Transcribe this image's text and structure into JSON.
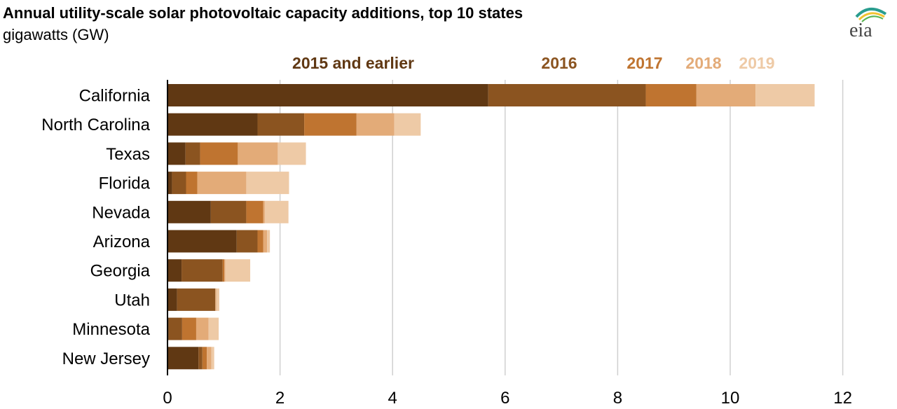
{
  "title": "Annual utility-scale solar photovoltaic capacity additions, top 10 states",
  "subtitle": "gigawatts (GW)",
  "logo_text": "eia",
  "chart_data": {
    "type": "bar",
    "orientation": "horizontal",
    "stacked": true,
    "categories": [
      "California",
      "North Carolina",
      "Texas",
      "Florida",
      "Nevada",
      "Arizona",
      "Georgia",
      "Utah",
      "Minnesota",
      "New Jersey"
    ],
    "series": [
      {
        "name": "2015 and earlier",
        "color": "#603813",
        "values": [
          5.7,
          1.6,
          0.32,
          0.08,
          0.77,
          1.23,
          0.25,
          0.17,
          0.02,
          0.55
        ]
      },
      {
        "name": "2016",
        "color": "#8b5420",
        "values": [
          2.8,
          0.83,
          0.26,
          0.25,
          0.63,
          0.37,
          0.73,
          0.68,
          0.24,
          0.07
        ]
      },
      {
        "name": "2017",
        "color": "#bf7430",
        "values": [
          0.9,
          0.93,
          0.67,
          0.2,
          0.3,
          0.1,
          0.03,
          0.0,
          0.25,
          0.08
        ]
      },
      {
        "name": "2018",
        "color": "#e3ab78",
        "values": [
          1.05,
          0.67,
          0.71,
          0.87,
          0.03,
          0.07,
          0.02,
          0.02,
          0.22,
          0.08
        ]
      },
      {
        "name": "2019",
        "color": "#eecaa6",
        "values": [
          1.05,
          0.47,
          0.5,
          0.76,
          0.42,
          0.05,
          0.44,
          0.05,
          0.18,
          0.05
        ]
      }
    ],
    "xlim": [
      0,
      12
    ],
    "xticks": [
      0,
      2,
      4,
      6,
      8,
      10,
      12
    ],
    "grid": true,
    "legend": "top"
  }
}
